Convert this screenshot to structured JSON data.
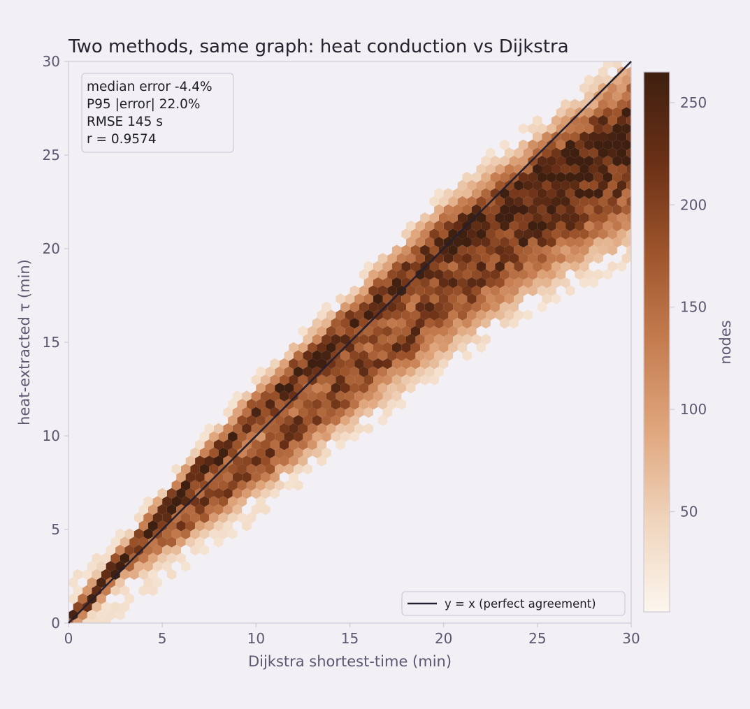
{
  "chart_data": {
    "type": "heatmap",
    "subtype": "hexbin",
    "title": "Two methods, same graph: heat conduction vs Dijkstra",
    "xlabel": "Dijkstra shortest-time (min)",
    "ylabel": "heat-extracted τ (min)",
    "xlim": [
      0,
      30
    ],
    "ylim": [
      0,
      30
    ],
    "xticks": [
      0,
      5,
      10,
      15,
      20,
      25,
      30
    ],
    "yticks": [
      0,
      5,
      10,
      15,
      20,
      25,
      30
    ],
    "grid": false,
    "colormap": "Oranges-brown",
    "colorbar": {
      "label": "nodes",
      "min": 1,
      "max": 265,
      "ticks": [
        50,
        100,
        150,
        200,
        250
      ]
    },
    "stats_box": {
      "lines": [
        "median error -4.4%",
        "P95 |error| 22.0%",
        "RMSE 145 s",
        "r = 0.9574"
      ]
    },
    "reference_line": {
      "name": "y = x (perfect agreement)",
      "x": [
        0,
        30
      ],
      "y": [
        0,
        30
      ],
      "color": "#26202e"
    },
    "legend_position": "lower-right",
    "density_ridges": [
      {
        "x": [
          0,
          5,
          10,
          15,
          20,
          25
        ],
        "y": [
          0,
          5.8,
          11.2,
          15.6,
          20.1,
          23.4
        ]
      },
      {
        "x": [
          5,
          10,
          15,
          20,
          25,
          30
        ],
        "y": [
          4.6,
          8.5,
          12.8,
          17.0,
          21.0,
          24.0
        ]
      }
    ],
    "peak_counts": [
      {
        "x": 4.9,
        "y": 5.8,
        "count": 265
      },
      {
        "x": 7.1,
        "y": 8.3,
        "count": 250
      },
      {
        "x": 13.9,
        "y": 15.0,
        "count": 240
      },
      {
        "x": 20.3,
        "y": 20.0,
        "count": 260
      },
      {
        "x": 24.9,
        "y": 23.4,
        "count": 262
      }
    ]
  },
  "colors": {
    "background": "#f2f0f5",
    "axes_frame": "#cfcbdb",
    "text": "#26232e",
    "tick_text": "#5c5670",
    "cmap_stops": [
      "#fcf6ee",
      "#f0d5bd",
      "#e0a77e",
      "#c57d50",
      "#9d542b",
      "#6a3016",
      "#3e1f10"
    ]
  }
}
